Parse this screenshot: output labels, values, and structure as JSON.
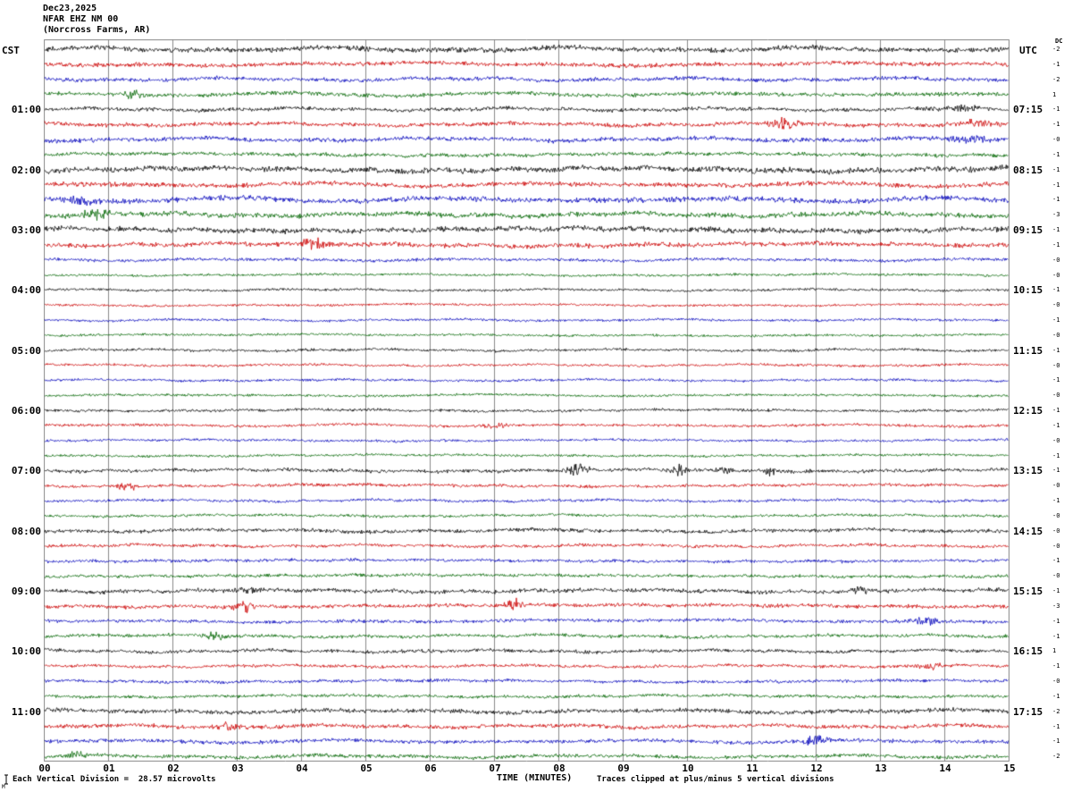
{
  "header": {
    "date": "Dec23,2025",
    "station": "NFAR EHZ NM 00",
    "location": "(Norcross Farms, AR)"
  },
  "axes": {
    "left_timezone": "CST",
    "right_timezone": "UTC",
    "dc_header": "DC",
    "x_axis_title": "TIME (MINUTES)",
    "x_ticks": [
      "00",
      "01",
      "02",
      "03",
      "04",
      "05",
      "06",
      "07",
      "08",
      "09",
      "10",
      "11",
      "12",
      "13",
      "14",
      "15"
    ]
  },
  "footer": {
    "scale_text": "Each Vertical Division =  28.57 microvolts",
    "clip_text": "Traces clipped at plus/minus 5 vertical divisions",
    "corner_mark": "M"
  },
  "chart_data": {
    "type": "line",
    "kind": "helicorder-seismogram",
    "title": "NFAR EHZ NM 00 (Norcross Farms, AR) Dec23,2025",
    "xlabel": "TIME (MINUTES)",
    "x_range": [
      0,
      15
    ],
    "minutes_per_row": 15,
    "grid_color": "#8a8a8a",
    "colors_cycle": [
      "#000000",
      "#cc0000",
      "#0000bb",
      "#006600"
    ],
    "rows": [
      {
        "t": "00:00",
        "label": "",
        "utc": "",
        "dc": "-2",
        "amp": 1.6,
        "seed": 11,
        "ev": []
      },
      {
        "t": "00:15",
        "label": "",
        "utc": "",
        "dc": "-1",
        "amp": 1.4,
        "seed": 12,
        "ev": []
      },
      {
        "t": "00:30",
        "label": "",
        "utc": "",
        "dc": "-2",
        "amp": 1.3,
        "seed": 13,
        "ev": []
      },
      {
        "t": "00:45",
        "label": "",
        "utc": "",
        "dc": "1",
        "amp": 1.3,
        "seed": 14,
        "ev": [
          {
            "t": 1.4,
            "w": 0.15,
            "a": 2
          }
        ]
      },
      {
        "t": "01:00",
        "label": "01:00",
        "utc": "07:15",
        "dc": "-1",
        "amp": 1.2,
        "seed": 15,
        "ev": [
          {
            "t": 14.2,
            "w": 0.3,
            "a": 1.5
          }
        ]
      },
      {
        "t": "01:15",
        "label": "",
        "utc": "",
        "dc": "-1",
        "amp": 1.3,
        "seed": 16,
        "ev": [
          {
            "t": 11.5,
            "w": 0.2,
            "a": 3
          },
          {
            "t": 14.5,
            "w": 0.3,
            "a": 1.5
          }
        ]
      },
      {
        "t": "01:30",
        "label": "",
        "utc": "",
        "dc": "-0",
        "amp": 1.4,
        "seed": 17,
        "ev": [
          {
            "t": 14.4,
            "w": 0.3,
            "a": 1.5
          }
        ]
      },
      {
        "t": "01:45",
        "label": "",
        "utc": "",
        "dc": "-1",
        "amp": 1.2,
        "seed": 18,
        "ev": []
      },
      {
        "t": "02:00",
        "label": "02:00",
        "utc": "08:15",
        "dc": "-1",
        "amp": 1.8,
        "seed": 19,
        "ev": []
      },
      {
        "t": "02:15",
        "label": "",
        "utc": "",
        "dc": "-1",
        "amp": 1.5,
        "seed": 20,
        "ev": []
      },
      {
        "t": "02:30",
        "label": "",
        "utc": "",
        "dc": "-1",
        "amp": 1.7,
        "seed": 21,
        "ev": [
          {
            "t": 0.6,
            "w": 0.2,
            "a": 2
          }
        ]
      },
      {
        "t": "02:45",
        "label": "",
        "utc": "",
        "dc": "-3",
        "amp": 1.6,
        "seed": 22,
        "ev": [
          {
            "t": 0.8,
            "w": 0.2,
            "a": 2.5
          }
        ]
      },
      {
        "t": "03:00",
        "label": "03:00",
        "utc": "09:15",
        "dc": "-1",
        "amp": 1.7,
        "seed": 23,
        "ev": []
      },
      {
        "t": "03:15",
        "label": "",
        "utc": "",
        "dc": "-1",
        "amp": 1.5,
        "seed": 24,
        "ev": [
          {
            "t": 4.2,
            "w": 0.2,
            "a": 2.5
          }
        ]
      },
      {
        "t": "03:30",
        "label": "",
        "utc": "",
        "dc": "-0",
        "amp": 1.0,
        "seed": 25,
        "ev": []
      },
      {
        "t": "03:45",
        "label": "",
        "utc": "",
        "dc": "-0",
        "amp": 0.8,
        "seed": 26,
        "ev": []
      },
      {
        "t": "04:00",
        "label": "04:00",
        "utc": "10:15",
        "dc": "-1",
        "amp": 0.8,
        "seed": 27,
        "ev": []
      },
      {
        "t": "04:15",
        "label": "",
        "utc": "",
        "dc": "-0",
        "amp": 0.8,
        "seed": 28,
        "ev": []
      },
      {
        "t": "04:30",
        "label": "",
        "utc": "",
        "dc": "-1",
        "amp": 0.8,
        "seed": 29,
        "ev": []
      },
      {
        "t": "04:45",
        "label": "",
        "utc": "",
        "dc": "-0",
        "amp": 0.8,
        "seed": 30,
        "ev": []
      },
      {
        "t": "05:00",
        "label": "05:00",
        "utc": "11:15",
        "dc": "-1",
        "amp": 0.9,
        "seed": 31,
        "ev": []
      },
      {
        "t": "05:15",
        "label": "",
        "utc": "",
        "dc": "-0",
        "amp": 0.8,
        "seed": 32,
        "ev": []
      },
      {
        "t": "05:30",
        "label": "",
        "utc": "",
        "dc": "-1",
        "amp": 0.8,
        "seed": 33,
        "ev": []
      },
      {
        "t": "05:45",
        "label": "",
        "utc": "",
        "dc": "-0",
        "amp": 0.8,
        "seed": 34,
        "ev": []
      },
      {
        "t": "06:00",
        "label": "06:00",
        "utc": "12:15",
        "dc": "-1",
        "amp": 0.9,
        "seed": 35,
        "ev": []
      },
      {
        "t": "06:15",
        "label": "",
        "utc": "",
        "dc": "-1",
        "amp": 0.9,
        "seed": 36,
        "ev": [
          {
            "t": 7.0,
            "w": 0.15,
            "a": 1.5
          }
        ]
      },
      {
        "t": "06:30",
        "label": "",
        "utc": "",
        "dc": "-0",
        "amp": 0.8,
        "seed": 37,
        "ev": []
      },
      {
        "t": "06:45",
        "label": "",
        "utc": "",
        "dc": "-1",
        "amp": 0.8,
        "seed": 38,
        "ev": []
      },
      {
        "t": "07:00",
        "label": "07:00",
        "utc": "13:15",
        "dc": "-1",
        "amp": 1.1,
        "seed": 39,
        "ev": [
          {
            "t": 8.3,
            "w": 0.15,
            "a": 3.5
          },
          {
            "t": 9.9,
            "w": 0.12,
            "a": 3.5
          },
          {
            "t": 10.6,
            "w": 0.1,
            "a": 3
          },
          {
            "t": 11.3,
            "w": 0.1,
            "a": 3
          }
        ]
      },
      {
        "t": "07:15",
        "label": "",
        "utc": "",
        "dc": "-0",
        "amp": 1.0,
        "seed": 40,
        "ev": [
          {
            "t": 1.3,
            "w": 0.15,
            "a": 2
          }
        ]
      },
      {
        "t": "07:30",
        "label": "",
        "utc": "",
        "dc": "-1",
        "amp": 0.9,
        "seed": 41,
        "ev": []
      },
      {
        "t": "07:45",
        "label": "",
        "utc": "",
        "dc": "-0",
        "amp": 0.9,
        "seed": 42,
        "ev": []
      },
      {
        "t": "08:00",
        "label": "08:00",
        "utc": "14:15",
        "dc": "-0",
        "amp": 1.2,
        "seed": 43,
        "ev": []
      },
      {
        "t": "08:15",
        "label": "",
        "utc": "",
        "dc": "-0",
        "amp": 1.0,
        "seed": 44,
        "ev": []
      },
      {
        "t": "08:30",
        "label": "",
        "utc": "",
        "dc": "-1",
        "amp": 1.0,
        "seed": 45,
        "ev": []
      },
      {
        "t": "08:45",
        "label": "",
        "utc": "",
        "dc": "-0",
        "amp": 1.0,
        "seed": 46,
        "ev": []
      },
      {
        "t": "09:00",
        "label": "09:00",
        "utc": "15:15",
        "dc": "-1",
        "amp": 1.3,
        "seed": 47,
        "ev": [
          {
            "t": 12.7,
            "w": 0.15,
            "a": 2.5
          },
          {
            "t": 3.2,
            "w": 0.2,
            "a": 1.5
          }
        ]
      },
      {
        "t": "09:15",
        "label": "",
        "utc": "",
        "dc": "-3",
        "amp": 1.2,
        "seed": 48,
        "ev": [
          {
            "t": 3.1,
            "w": 0.12,
            "a": 4
          },
          {
            "t": 7.3,
            "w": 0.12,
            "a": 4
          }
        ]
      },
      {
        "t": "09:30",
        "label": "",
        "utc": "",
        "dc": "-1",
        "amp": 1.1,
        "seed": 49,
        "ev": [
          {
            "t": 13.7,
            "w": 0.2,
            "a": 2
          }
        ]
      },
      {
        "t": "09:45",
        "label": "",
        "utc": "",
        "dc": "-1",
        "amp": 1.1,
        "seed": 50,
        "ev": [
          {
            "t": 2.7,
            "w": 0.15,
            "a": 2.5
          }
        ]
      },
      {
        "t": "10:00",
        "label": "10:00",
        "utc": "16:15",
        "dc": "1",
        "amp": 1.1,
        "seed": 51,
        "ev": []
      },
      {
        "t": "10:15",
        "label": "",
        "utc": "",
        "dc": "-1",
        "amp": 1.0,
        "seed": 52,
        "ev": [
          {
            "t": 13.8,
            "w": 0.15,
            "a": 2.5
          }
        ]
      },
      {
        "t": "10:30",
        "label": "",
        "utc": "",
        "dc": "-0",
        "amp": 1.0,
        "seed": 53,
        "ev": []
      },
      {
        "t": "10:45",
        "label": "",
        "utc": "",
        "dc": "-1",
        "amp": 1.0,
        "seed": 54,
        "ev": []
      },
      {
        "t": "11:00",
        "label": "11:00",
        "utc": "17:15",
        "dc": "-2",
        "amp": 1.4,
        "seed": 55,
        "ev": []
      },
      {
        "t": "11:15",
        "label": "",
        "utc": "",
        "dc": "-1",
        "amp": 1.3,
        "seed": 56,
        "ev": [
          {
            "t": 2.9,
            "w": 0.2,
            "a": 2
          }
        ]
      },
      {
        "t": "11:30",
        "label": "",
        "utc": "",
        "dc": "-1",
        "amp": 1.2,
        "seed": 57,
        "ev": [
          {
            "t": 12.0,
            "w": 0.2,
            "a": 2.5
          }
        ]
      },
      {
        "t": "11:45",
        "label": "",
        "utc": "",
        "dc": "-2",
        "amp": 1.2,
        "seed": 58,
        "ev": [
          {
            "t": 0.5,
            "w": 0.15,
            "a": 2
          }
        ]
      }
    ]
  }
}
